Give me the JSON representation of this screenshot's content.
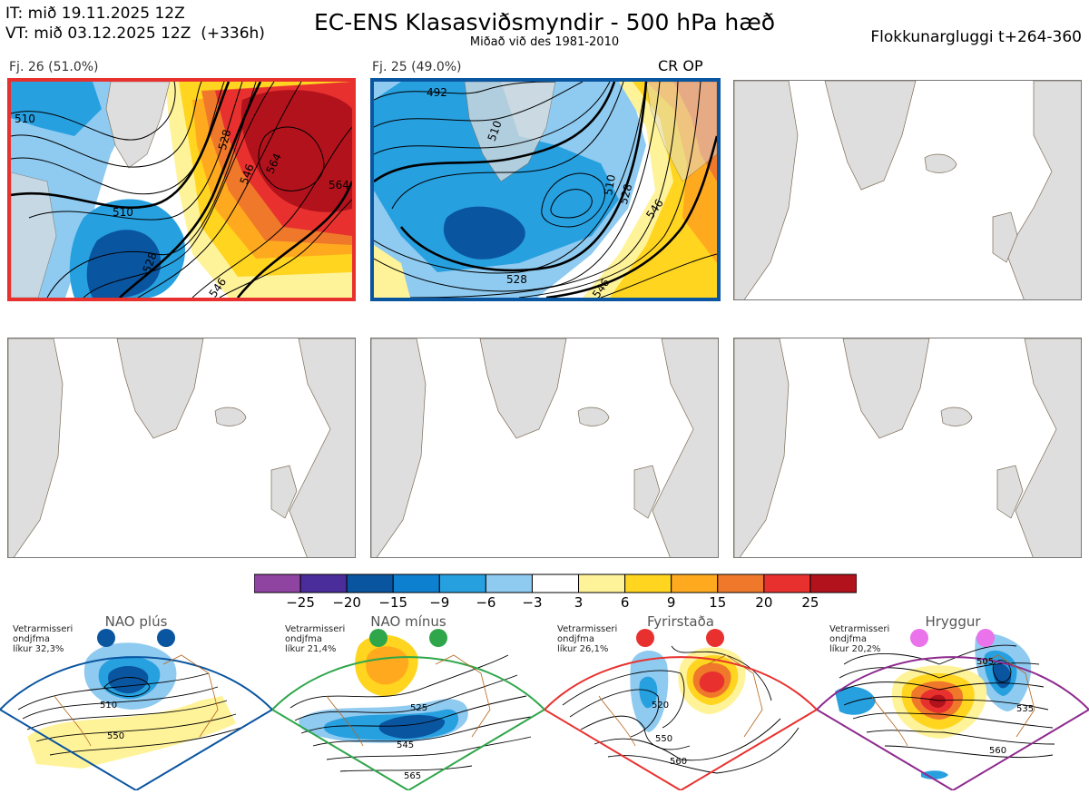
{
  "header": {
    "it": "IT: mið 19.11.2025 12Z",
    "vt": "VT: mið 03.12.2025 12Z  (+336h)",
    "title": "EC-ENS Klasasviðsmyndir - 500 hPa hæð",
    "subtitle": "Miðað við des 1981-2010",
    "window": "Flokkunargluggi t+264-360"
  },
  "colors": {
    "land": "#dedede",
    "coast": "#7a6a55",
    "cluster1_border": "#e8312e",
    "cluster2_border": "#0a55a0"
  },
  "panels": [
    {
      "label": "Fj. 26 (51.0%)",
      "members": 26,
      "percent": 51.0,
      "marker": "",
      "contours": [
        "510",
        "510",
        "528",
        "528",
        "546",
        "564",
        "564",
        "546"
      ]
    },
    {
      "label": "Fj. 25 (49.0%)",
      "members": 25,
      "percent": 49.0,
      "marker": "CR OP",
      "contours": [
        "492",
        "510",
        "510",
        "528",
        "528",
        "546",
        "546"
      ]
    }
  ],
  "colorbar": {
    "colors": [
      "#8e44a0",
      "#4a2d9a",
      "#0a55a0",
      "#0d80d0",
      "#27a0e0",
      "#8fcaf0",
      "#ffffff",
      "#fff39a",
      "#ffd520",
      "#ffaa1e",
      "#f0782a",
      "#e8312e",
      "#b2121c"
    ],
    "ticks": [
      "−25",
      "−20",
      "−15",
      "−9",
      "−6",
      "−3",
      "3",
      "6",
      "9",
      "15",
      "20",
      "25"
    ]
  },
  "regimes": [
    {
      "name": "NAO plús",
      "note": "Vetrarmisseri\nondjfma\nlíkur 32,3%",
      "probability": 32.3,
      "color": "#0a55a0",
      "dot": "#0a55a0",
      "labels": [
        "510",
        "550"
      ]
    },
    {
      "name": "NAO mínus",
      "note": "Vetrarmisseri\nondjfma\nlíkur 21,4%",
      "probability": 21.4,
      "color": "#2fa64a",
      "dot": "#2fa64a",
      "labels": [
        "525",
        "545",
        "565"
      ]
    },
    {
      "name": "Fyrirstaða",
      "note": "Vetrarmisseri\nondjfma\nlíkur 26,1%",
      "probability": 26.1,
      "color": "#e8312e",
      "dot": "#e8312e",
      "labels": [
        "520",
        "550",
        "560"
      ]
    },
    {
      "name": "Hryggur",
      "note": "Vetrarmisseri\nondjfma\nlíkur 20,2%",
      "probability": 20.2,
      "color": "#8e2a8e",
      "dot": "#ea72ea",
      "labels": [
        "505",
        "535",
        "560"
      ]
    }
  ]
}
